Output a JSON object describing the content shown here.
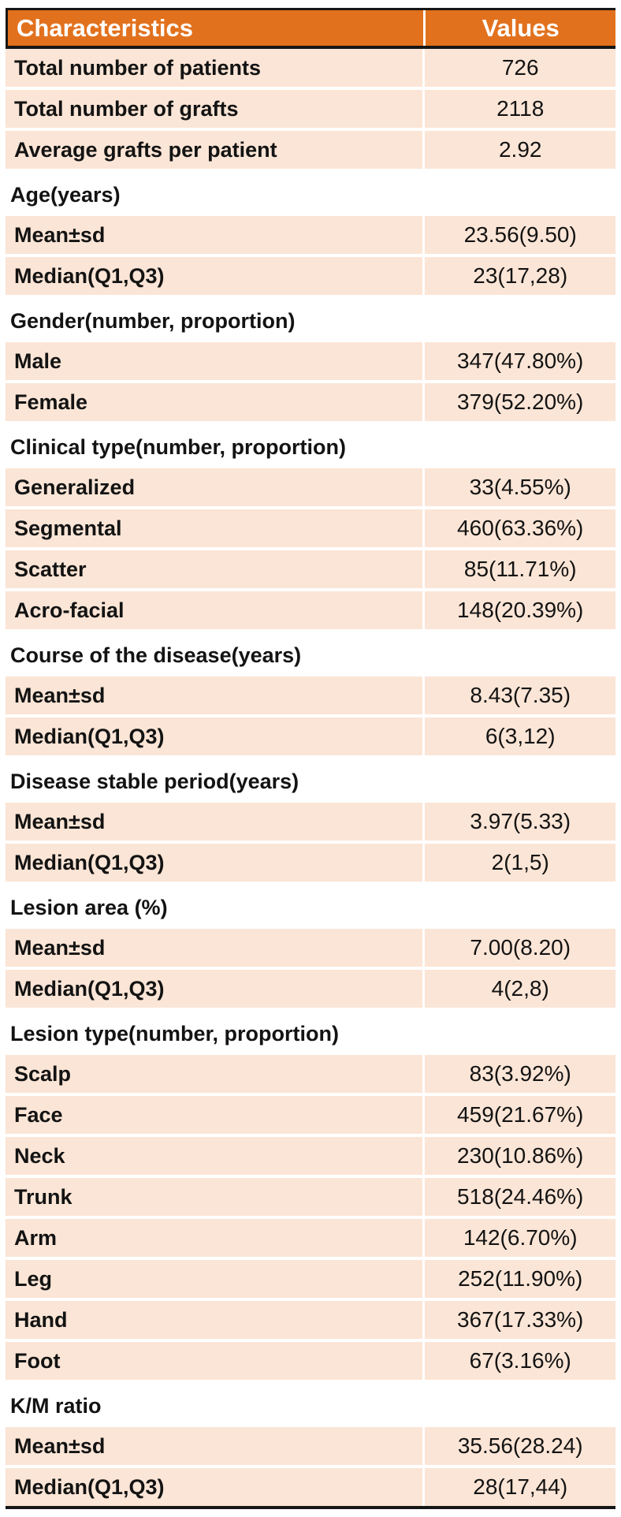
{
  "chart_data": {
    "type": "table",
    "columns": [
      "Characteristics",
      "Values"
    ],
    "rows": [
      {
        "kind": "data",
        "label": "Total number of patients",
        "value": "726"
      },
      {
        "kind": "data",
        "label": "Total number of grafts",
        "value": "2118"
      },
      {
        "kind": "data",
        "label": "Average grafts per patient",
        "value": "2.92"
      },
      {
        "kind": "section",
        "label": "Age(years)"
      },
      {
        "kind": "data",
        "label": "Mean±sd",
        "value": "23.56(9.50)"
      },
      {
        "kind": "data",
        "label": "Median(Q1,Q3)",
        "value": "23(17,28)"
      },
      {
        "kind": "section",
        "label": "Gender(number, proportion)"
      },
      {
        "kind": "data",
        "label": "Male",
        "value": "347(47.80%)"
      },
      {
        "kind": "data",
        "label": "Female",
        "value": "379(52.20%)"
      },
      {
        "kind": "section",
        "label": "Clinical type(number, proportion)"
      },
      {
        "kind": "data",
        "label": "Generalized",
        "value": "33(4.55%)"
      },
      {
        "kind": "data",
        "label": "Segmental",
        "value": "460(63.36%)"
      },
      {
        "kind": "data",
        "label": "Scatter",
        "value": "85(11.71%)"
      },
      {
        "kind": "data",
        "label": "Acro-facial",
        "value": "148(20.39%)"
      },
      {
        "kind": "section",
        "label": "Course of the disease(years)"
      },
      {
        "kind": "data",
        "label": "Mean±sd",
        "value": "8.43(7.35)"
      },
      {
        "kind": "data",
        "label": "Median(Q1,Q3)",
        "value": "6(3,12)"
      },
      {
        "kind": "section",
        "label": "Disease stable period(years)"
      },
      {
        "kind": "data",
        "label": "Mean±sd",
        "value": "3.97(5.33)"
      },
      {
        "kind": "data",
        "label": "Median(Q1,Q3)",
        "value": "2(1,5)"
      },
      {
        "kind": "section",
        "label": "Lesion area (%)"
      },
      {
        "kind": "data",
        "label": "Mean±sd",
        "value": "7.00(8.20)"
      },
      {
        "kind": "data",
        "label": "Median(Q1,Q3)",
        "value": "4(2,8)"
      },
      {
        "kind": "section",
        "label": "Lesion type(number, proportion)"
      },
      {
        "kind": "data",
        "label": "Scalp",
        "value": "83(3.92%)"
      },
      {
        "kind": "data",
        "label": "Face",
        "value": "459(21.67%)"
      },
      {
        "kind": "data",
        "label": "Neck",
        "value": "230(10.86%)"
      },
      {
        "kind": "data",
        "label": "Trunk",
        "value": "518(24.46%)"
      },
      {
        "kind": "data",
        "label": "Arm",
        "value": "142(6.70%)"
      },
      {
        "kind": "data",
        "label": "Leg",
        "value": "252(11.90%)"
      },
      {
        "kind": "data",
        "label": "Hand",
        "value": "367(17.33%)"
      },
      {
        "kind": "data",
        "label": "Foot",
        "value": "67(3.16%)"
      },
      {
        "kind": "section",
        "label": "K/M ratio"
      },
      {
        "kind": "data",
        "label": "Mean±sd",
        "value": "35.56(28.24)"
      },
      {
        "kind": "data",
        "label": "Median(Q1,Q3)",
        "value": "28(17,44)"
      }
    ]
  },
  "colors": {
    "header_bg": "#E2711D",
    "header_text": "#FFFFFF",
    "row_bg": "#FBE5D6",
    "section_bg": "#FFFFFF",
    "body_text": "#131313",
    "border": "#161616",
    "page_bg": "#FFFFFF"
  }
}
